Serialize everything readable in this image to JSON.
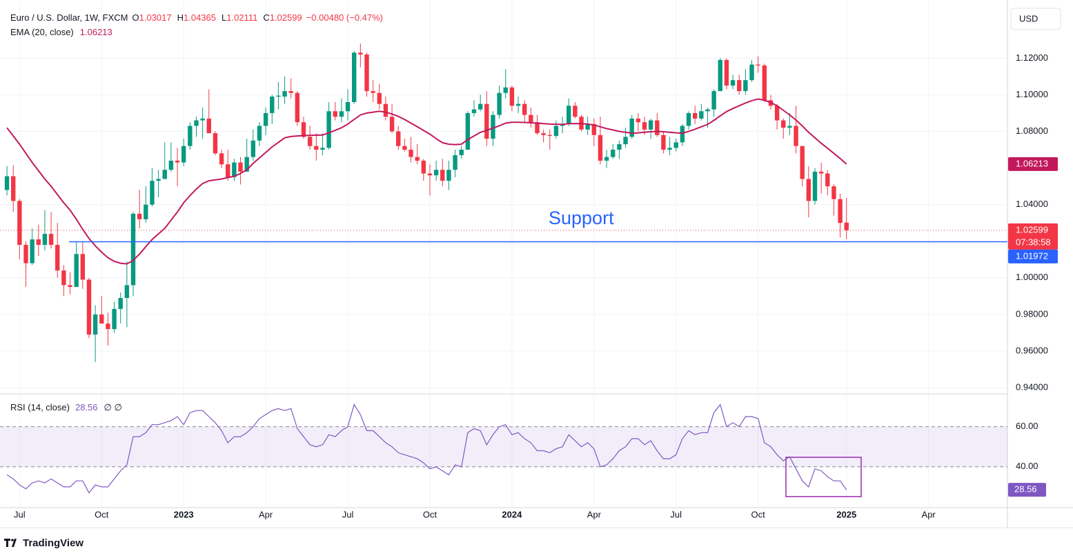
{
  "chart_data": {
    "type": "candlestick",
    "title": "Euro / U.S. Dollar, 1W, FXCM",
    "ohlc_legend": [
      {
        "key": "O",
        "value": "1.03017"
      },
      {
        "key": "H",
        "value": "1.04365"
      },
      {
        "key": "L",
        "value": "1.02111"
      },
      {
        "key": "C",
        "value": "1.02599"
      }
    ],
    "change": "−0.00480 (−0.47%)",
    "currency": "USD",
    "up_color": "#089981",
    "down_color": "#f23645",
    "grid": true,
    "xlim": [
      -1.1,
      158.5
    ],
    "xticks": [
      {
        "value": 2,
        "label": "Jul"
      },
      {
        "value": 15,
        "label": "Oct"
      },
      {
        "value": 28,
        "label": "2023"
      },
      {
        "value": 41,
        "label": "Apr"
      },
      {
        "value": 54,
        "label": "Jul"
      },
      {
        "value": 67,
        "label": "Oct"
      },
      {
        "value": 80,
        "label": "2024"
      },
      {
        "value": 93,
        "label": "Apr"
      },
      {
        "value": 106,
        "label": "Jul"
      },
      {
        "value": 119,
        "label": "Oct"
      },
      {
        "value": 133,
        "label": "2025"
      },
      {
        "value": 146,
        "label": "Apr"
      }
    ],
    "ylim": [
      0.937,
      1.148
    ],
    "yticks": [
      {
        "value": 0.94,
        "label": "0.94000"
      },
      {
        "value": 0.96,
        "label": "0.96000"
      },
      {
        "value": 0.98,
        "label": "0.98000"
      },
      {
        "value": 1.0,
        "label": "1.00000"
      },
      {
        "value": 1.04,
        "label": "1.04000"
      },
      {
        "value": 1.08,
        "label": "1.08000"
      },
      {
        "value": 1.1,
        "label": "1.10000"
      },
      {
        "value": 1.12,
        "label": "1.12000"
      }
    ],
    "open": [
      1.048,
      1.0555,
      1.042,
      1.018,
      1.008,
      1.021,
      1.018,
      1.024,
      1.018,
      1.004,
      0.996,
      0.995,
      1.013,
      0.999,
      0.969,
      0.98,
      0.975,
      0.972,
      0.983,
      0.989,
      0.996,
      1.035,
      1.032,
      1.04,
      1.053,
      1.054,
      1.059,
      1.064,
      1.063,
      1.072,
      1.083,
      1.086,
      1.087,
      1.079,
      1.068,
      1.062,
      1.055,
      1.063,
      1.058,
      1.066,
      1.075,
      1.083,
      1.09,
      1.099,
      1.099,
      1.102,
      1.101,
      1.085,
      1.077,
      1.072,
      1.07,
      1.071,
      1.091,
      1.088,
      1.091,
      1.096,
      1.123,
      1.122,
      1.102,
      1.101,
      1.095,
      1.088,
      1.08,
      1.072,
      1.07,
      1.066,
      1.064,
      1.057,
      1.056,
      1.059,
      1.053,
      1.059,
      1.067,
      1.07,
      1.09,
      1.092,
      1.095,
      1.076,
      1.089,
      1.101,
      1.104,
      1.094,
      1.095,
      1.089,
      1.085,
      1.079,
      1.078,
      1.0775,
      1.083,
      1.084,
      1.094,
      1.088,
      1.081,
      1.084,
      1.078,
      1.064,
      1.066,
      1.07,
      1.073,
      1.077,
      1.087,
      1.085,
      1.081,
      1.086,
      1.078,
      1.07,
      1.071,
      1.074,
      1.083,
      1.09,
      1.087,
      1.091,
      1.092,
      1.102,
      1.119,
      1.105,
      1.108,
      1.102,
      1.108,
      1.1165,
      1.116,
      1.097,
      1.094,
      1.086,
      1.082,
      1.083,
      1.072,
      1.054,
      1.042,
      1.058,
      1.057,
      1.05,
      1.043,
      1.03017
    ],
    "high": [
      1.061,
      1.0615,
      1.043,
      1.02,
      1.027,
      1.029,
      1.037,
      1.036,
      1.03,
      1.007,
      1.003,
      1.02,
      1.02,
      1.0,
      0.985,
      0.99,
      0.981,
      0.987,
      0.992,
      1.009,
      1.036,
      1.048,
      1.05,
      1.06,
      1.059,
      1.074,
      1.074,
      1.071,
      1.076,
      1.085,
      1.088,
      1.093,
      1.103,
      1.08,
      1.07,
      1.07,
      1.065,
      1.066,
      1.076,
      1.081,
      1.085,
      1.093,
      1.1,
      1.107,
      1.11,
      1.109,
      1.102,
      1.088,
      1.083,
      1.079,
      1.079,
      1.096,
      1.096,
      1.098,
      1.103,
      1.124,
      1.128,
      1.123,
      1.108,
      1.106,
      1.099,
      1.095,
      1.083,
      1.076,
      1.077,
      1.073,
      1.065,
      1.062,
      1.064,
      1.065,
      1.064,
      1.07,
      1.072,
      1.091,
      1.097,
      1.1,
      1.102,
      1.091,
      1.105,
      1.114,
      1.105,
      1.099,
      1.097,
      1.093,
      1.089,
      1.081,
      1.081,
      1.086,
      1.088,
      1.098,
      1.096,
      1.089,
      1.088,
      1.087,
      1.088,
      1.07,
      1.073,
      1.075,
      1.082,
      1.089,
      1.09,
      1.088,
      1.087,
      1.09,
      1.08,
      1.077,
      1.076,
      1.084,
      1.091,
      1.094,
      1.095,
      1.093,
      1.103,
      1.12,
      1.12,
      1.111,
      1.111,
      1.114,
      1.119,
      1.121,
      1.117,
      1.1,
      1.095,
      1.087,
      1.09,
      1.094,
      1.072,
      1.061,
      1.06,
      1.063,
      1.059,
      1.051,
      1.046,
      1.04365
    ],
    "low": [
      1.045,
      1.036,
      1.01,
      0.995,
      1.007,
      1.012,
      1.015,
      1.016,
      1.0,
      0.99,
      0.991,
      0.995,
      0.994,
      0.967,
      0.954,
      0.975,
      0.963,
      0.97,
      0.975,
      0.973,
      0.99,
      1.027,
      1.03,
      1.039,
      1.044,
      1.054,
      1.058,
      1.05,
      1.061,
      1.07,
      1.077,
      1.076,
      1.079,
      1.067,
      1.06,
      1.053,
      1.053,
      1.051,
      1.058,
      1.064,
      1.072,
      1.078,
      1.084,
      1.092,
      1.095,
      1.098,
      1.083,
      1.076,
      1.07,
      1.064,
      1.067,
      1.07,
      1.086,
      1.085,
      1.086,
      1.095,
      1.115,
      1.099,
      1.096,
      1.092,
      1.086,
      1.079,
      1.07,
      1.069,
      1.063,
      1.062,
      1.053,
      1.045,
      1.053,
      1.05,
      1.048,
      1.055,
      1.065,
      1.07,
      1.088,
      1.091,
      1.072,
      1.072,
      1.087,
      1.098,
      1.091,
      1.09,
      1.085,
      1.082,
      1.078,
      1.074,
      1.07,
      1.076,
      1.079,
      1.083,
      1.087,
      1.08,
      1.078,
      1.072,
      1.062,
      1.06,
      1.065,
      1.065,
      1.071,
      1.076,
      1.08,
      1.078,
      1.076,
      1.077,
      1.068,
      1.067,
      1.069,
      1.072,
      1.081,
      1.084,
      1.086,
      1.082,
      1.088,
      1.102,
      1.103,
      1.103,
      1.1,
      1.1,
      1.107,
      1.112,
      1.096,
      1.092,
      1.081,
      1.076,
      1.078,
      1.068,
      1.05,
      1.033,
      1.04,
      1.046,
      1.045,
      1.034,
      1.022,
      1.02111
    ],
    "close": [
      1.0555,
      1.042,
      1.018,
      1.008,
      1.021,
      1.018,
      1.024,
      1.018,
      1.004,
      0.996,
      0.995,
      1.013,
      0.999,
      0.969,
      0.98,
      0.975,
      0.972,
      0.983,
      0.989,
      0.996,
      1.035,
      1.032,
      1.04,
      1.053,
      1.054,
      1.059,
      1.064,
      1.063,
      1.072,
      1.083,
      1.086,
      1.087,
      1.079,
      1.068,
      1.062,
      1.055,
      1.063,
      1.058,
      1.066,
      1.075,
      1.083,
      1.09,
      1.099,
      1.0995,
      1.102,
      1.101,
      1.085,
      1.077,
      1.072,
      1.07,
      1.071,
      1.091,
      1.088,
      1.091,
      1.096,
      1.123,
      1.122,
      1.102,
      1.101,
      1.095,
      1.088,
      1.08,
      1.072,
      1.07,
      1.066,
      1.064,
      1.057,
      1.056,
      1.059,
      1.053,
      1.059,
      1.067,
      1.07,
      1.09,
      1.092,
      1.095,
      1.076,
      1.089,
      1.101,
      1.104,
      1.094,
      1.095,
      1.089,
      1.085,
      1.079,
      1.078,
      1.0775,
      1.083,
      1.084,
      1.094,
      1.088,
      1.081,
      1.084,
      1.078,
      1.064,
      1.066,
      1.07,
      1.073,
      1.077,
      1.087,
      1.085,
      1.081,
      1.086,
      1.078,
      1.07,
      1.071,
      1.074,
      1.083,
      1.09,
      1.087,
      1.091,
      1.092,
      1.102,
      1.119,
      1.105,
      1.108,
      1.102,
      1.108,
      1.1165,
      1.116,
      1.097,
      1.094,
      1.086,
      1.082,
      1.083,
      1.072,
      1.054,
      1.042,
      1.058,
      1.057,
      1.05,
      1.043,
      1.03,
      1.02599
    ],
    "last_price_label": "1.02599",
    "countdown": "07:38:58",
    "ema": {
      "name": "EMA (20, close)",
      "color": "#c2185b",
      "last_label": "1.06213",
      "values": [
        1.082,
        1.0775,
        1.073,
        1.068,
        1.063,
        1.0585,
        1.054,
        1.05,
        1.0455,
        1.041,
        1.037,
        1.032,
        1.0265,
        1.0215,
        1.0175,
        1.014,
        1.011,
        1.009,
        1.008,
        1.0076,
        1.0095,
        1.013,
        1.017,
        1.021,
        1.024,
        1.027,
        1.0315,
        1.036,
        1.041,
        1.045,
        1.0485,
        1.0515,
        1.053,
        1.0535,
        1.054,
        1.0548,
        1.0555,
        1.057,
        1.059,
        1.0625,
        1.0655,
        1.0685,
        1.0715,
        1.074,
        1.0765,
        1.0772,
        1.0775,
        1.0777,
        1.0778,
        1.0779,
        1.078,
        1.0792,
        1.0806,
        1.082,
        1.084,
        1.0865,
        1.089,
        1.09,
        1.0905,
        1.091,
        1.0905,
        1.0895,
        1.0882,
        1.0865,
        1.0845,
        1.0825,
        1.0805,
        1.0785,
        1.076,
        1.0738,
        1.073,
        1.0728,
        1.073,
        1.0755,
        1.0775,
        1.0795,
        1.0805,
        1.0818,
        1.083,
        1.0845,
        1.085,
        1.085,
        1.0849,
        1.0847,
        1.0845,
        1.0842,
        1.084,
        1.0839,
        1.0838,
        1.0842,
        1.0843,
        1.0842,
        1.084,
        1.0835,
        1.0825,
        1.0815,
        1.0808,
        1.08,
        1.0795,
        1.079,
        1.0792,
        1.0795,
        1.0798,
        1.08,
        1.0798,
        1.0795,
        1.0792,
        1.079,
        1.08,
        1.0812,
        1.0825,
        1.0838,
        1.086,
        1.0885,
        1.0908,
        1.0925,
        1.094,
        1.0955,
        1.0968,
        1.0977,
        1.097,
        1.0958,
        1.094,
        1.0915,
        1.089,
        1.0862,
        1.083,
        1.0795,
        1.0765,
        1.0735,
        1.0708,
        1.068,
        1.0652,
        1.06213
      ]
    },
    "support": {
      "label": "Support",
      "value": 1.01972,
      "value_label": "1.01972",
      "color": "#2962ff"
    },
    "rsi": {
      "name": "RSI (14, close)",
      "extra": "∅ ∅",
      "color": "#7e57c2",
      "last_label": "28.56",
      "ylim": [
        20,
        76
      ],
      "yticks": [
        {
          "value": 40,
          "label": "40.00"
        },
        {
          "value": 60,
          "label": "60.00"
        }
      ],
      "values": [
        36,
        34,
        31,
        29,
        32,
        33,
        32,
        34,
        32,
        30,
        30,
        33,
        33,
        27,
        31,
        30,
        30,
        34,
        38,
        41,
        55,
        55,
        57,
        61,
        61,
        62,
        63,
        65,
        61,
        67,
        68,
        68,
        65,
        62,
        58,
        52,
        55,
        55,
        57,
        60,
        64,
        66,
        68,
        69,
        68,
        69,
        59,
        55,
        51,
        50,
        51,
        56,
        55,
        58,
        60,
        71,
        66,
        58,
        58,
        55,
        52,
        50,
        47,
        46,
        45,
        44,
        42,
        39,
        40,
        38,
        36,
        41,
        40,
        57,
        59,
        58,
        51,
        56,
        60,
        61,
        56,
        57,
        54,
        52,
        48,
        48,
        47,
        49,
        50,
        56,
        53,
        50,
        52,
        49,
        40,
        41,
        44,
        48,
        50,
        54,
        54,
        51,
        53,
        48,
        44,
        44,
        46,
        54,
        58,
        56,
        57,
        57,
        67,
        71,
        60,
        62,
        60,
        65,
        65,
        64,
        52,
        50,
        46,
        43,
        45,
        39,
        33,
        30,
        39,
        38,
        35,
        33,
        33,
        28.56
      ]
    },
    "brand": "TradingView"
  }
}
